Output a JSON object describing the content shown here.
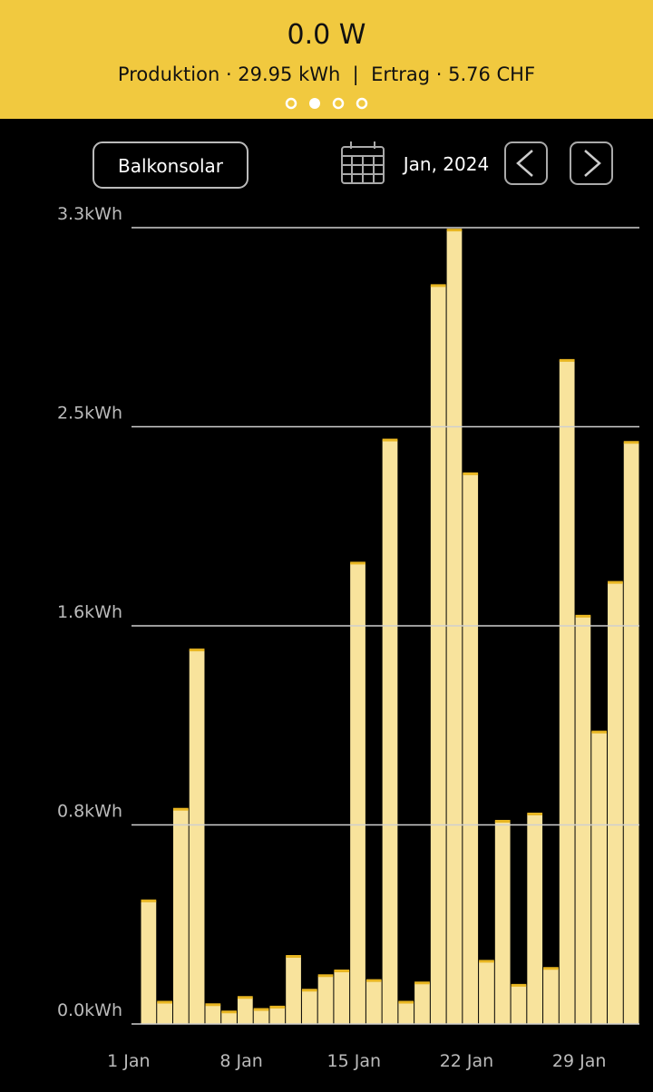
{
  "header": {
    "power": "0.0 W",
    "summary": "Produktion · 29.95 kWh  |  Ertrag · 5.76 CHF"
  },
  "toolbar": {
    "device": "Balkonsolar",
    "period": "Jan, 2024"
  },
  "chart_data": {
    "type": "bar",
    "categories": [
      "1 Jan",
      null,
      null,
      null,
      null,
      null,
      null,
      "8 Jan",
      null,
      null,
      null,
      null,
      null,
      null,
      "15 Jan",
      null,
      null,
      null,
      null,
      null,
      null,
      "22 Jan",
      null,
      null,
      null,
      null,
      null,
      null,
      "29 Jan",
      null,
      null
    ],
    "values": [
      0.51,
      0.09,
      0.89,
      1.55,
      0.08,
      0.05,
      0.11,
      0.06,
      0.07,
      0.28,
      0.14,
      0.2,
      0.22,
      1.91,
      0.18,
      2.42,
      0.09,
      0.17,
      3.06,
      3.29,
      2.28,
      0.26,
      0.84,
      0.16,
      0.87,
      0.23,
      2.75,
      1.69,
      1.21,
      1.83,
      2.41
    ],
    "color": "#f8e39c",
    "edge_color": "#e8b622",
    "ylim": [
      0,
      3.3
    ],
    "yticks": [
      {
        "value": 0,
        "label": "0.0kWh"
      },
      {
        "value": 0.825,
        "label": "0.8kWh"
      },
      {
        "value": 1.65,
        "label": "1.6kWh"
      },
      {
        "value": 2.475,
        "label": "2.5kWh"
      },
      {
        "value": 3.3,
        "label": "3.3kWh"
      }
    ],
    "grid": true
  }
}
